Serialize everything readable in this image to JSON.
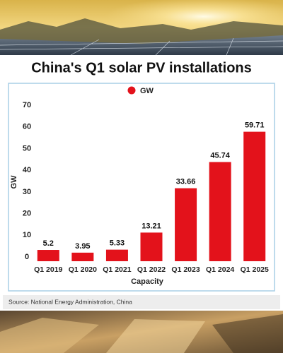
{
  "chart_data": {
    "type": "bar",
    "title": "China's Q1 solar PV installations",
    "categories": [
      "Q1 2019",
      "Q1 2020",
      "Q1 2021",
      "Q1 2022",
      "Q1 2023",
      "Q1 2024",
      "Q1 2025"
    ],
    "series": [
      {
        "name": "GW",
        "color": "#e3121b",
        "values": [
          5.2,
          3.95,
          5.33,
          13.21,
          33.66,
          45.74,
          59.71
        ]
      }
    ],
    "y_label": "GW",
    "x_label": "Capacity",
    "ylim": [
      0,
      70
    ],
    "yticks": [
      0,
      10,
      20,
      30,
      40,
      50,
      60,
      70
    ],
    "grid": false,
    "legend": "top",
    "source": "Source: National Energy Administration, China"
  }
}
